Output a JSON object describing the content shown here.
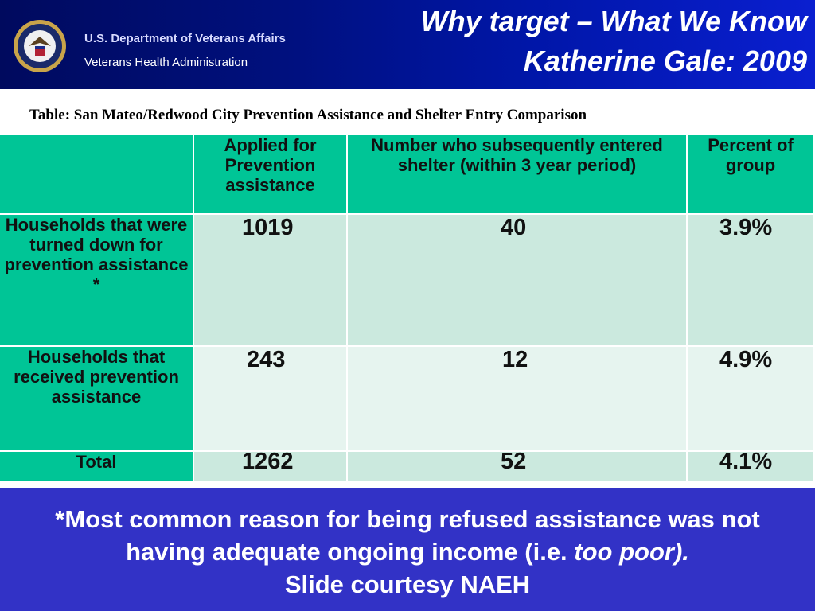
{
  "header": {
    "org_line1": "U.S. Department of Veterans Affairs",
    "org_line2": "Veterans Health Administration",
    "title_line1": "Why target – What We Know",
    "title_line2": "Katherine Gale: 2009"
  },
  "caption": "Table: San Mateo/Redwood City Prevention Assistance and Shelter Entry Comparison",
  "table": {
    "columns": [
      "",
      "Applied for Prevention assistance",
      "Number who subsequently entered shelter (within 3 year period)",
      "Percent of group"
    ],
    "rows": [
      {
        "label": "Households that were turned down for  prevention assistance *",
        "applied": "1019",
        "entered": "40",
        "percent": "3.9%"
      },
      {
        "label": "Households that received prevention assistance",
        "applied": "243",
        "entered": "12",
        "percent": "4.9%"
      },
      {
        "label": "Total",
        "applied": "1262",
        "entered": "52",
        "percent": "4.1%"
      }
    ]
  },
  "footer": {
    "line1": "*Most common reason for being refused assistance was not",
    "line2_prefix": "having adequate ongoing income (i.e. ",
    "line2_italic": "too poor).",
    "line3": "Slide courtesy NAEH"
  },
  "colors": {
    "header_blue": "#00107e",
    "table_header_green": "#00c596",
    "row_light": "#cbe9de",
    "row_lighter": "#e6f4ef",
    "footer_blue": "#3232c6"
  }
}
